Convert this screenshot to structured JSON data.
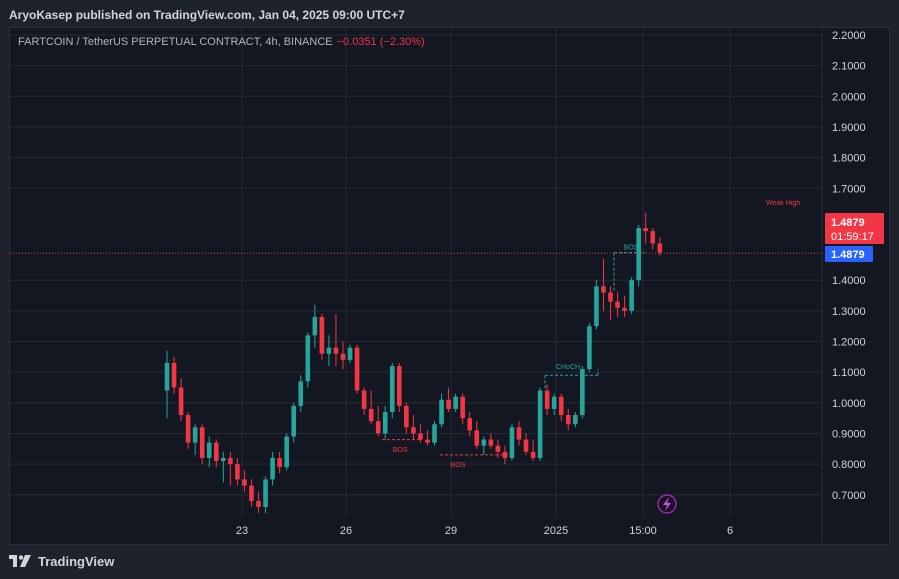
{
  "header": {
    "publisher_line": "AryoKasep published on TradingView.com, Jan 04, 2025 09:00 UTC+7"
  },
  "symbol": {
    "name": "FARTCOIN / TetherUS PERPETUAL CONTRACT, 4h, BINANCE",
    "change": "−0.0351 (−2.30%)"
  },
  "price_labels": {
    "last_price": "1.4879",
    "countdown": "01:59:17",
    "line_price": "1.4879"
  },
  "footer": {
    "brand": "TradingView"
  },
  "colors": {
    "up": "#26a69a",
    "down": "#f23645",
    "accent_blue": "#2962ff",
    "background": "#131722"
  },
  "icons": [
    "tradingview-logo-icon",
    "lightning-icon"
  ],
  "chart_data": {
    "type": "candlestick",
    "interval": "4h",
    "y_ticks": [
      "2.2000",
      "2.1000",
      "2.0000",
      "1.9000",
      "1.8000",
      "1.7000",
      "1.4000",
      "1.3000",
      "1.2000",
      "1.1000",
      "1.0000",
      "0.9000",
      "0.8000",
      "0.7000"
    ],
    "ylim": [
      0.64,
      2.22
    ],
    "x_ticks": [
      "23",
      "26",
      "29",
      "2025",
      "15:00",
      "6"
    ],
    "grid": true,
    "last_price": 1.4879,
    "annotations": [
      {
        "text": "Weak High",
        "color": "#f23645"
      },
      {
        "text": "BOS",
        "color": "#26a69a"
      },
      {
        "text": "CHoCH",
        "color": "#26a69a"
      },
      {
        "text": "BOS",
        "color": "#f23645"
      },
      {
        "text": "BOS",
        "color": "#f23645"
      }
    ],
    "candles": [
      {
        "o": 1.04,
        "h": 1.17,
        "l": 0.95,
        "c": 1.13
      },
      {
        "o": 1.13,
        "h": 1.15,
        "l": 1.03,
        "c": 1.05
      },
      {
        "o": 1.05,
        "h": 1.08,
        "l": 0.94,
        "c": 0.96
      },
      {
        "o": 0.96,
        "h": 0.97,
        "l": 0.85,
        "c": 0.87
      },
      {
        "o": 0.87,
        "h": 0.93,
        "l": 0.83,
        "c": 0.92
      },
      {
        "o": 0.92,
        "h": 0.93,
        "l": 0.8,
        "c": 0.82
      },
      {
        "o": 0.82,
        "h": 0.89,
        "l": 0.79,
        "c": 0.87
      },
      {
        "o": 0.87,
        "h": 0.88,
        "l": 0.79,
        "c": 0.81
      },
      {
        "o": 0.81,
        "h": 0.84,
        "l": 0.74,
        "c": 0.82
      },
      {
        "o": 0.82,
        "h": 0.84,
        "l": 0.73,
        "c": 0.8
      },
      {
        "o": 0.8,
        "h": 0.82,
        "l": 0.73,
        "c": 0.75
      },
      {
        "o": 0.75,
        "h": 0.78,
        "l": 0.71,
        "c": 0.73
      },
      {
        "o": 0.73,
        "h": 0.75,
        "l": 0.66,
        "c": 0.68
      },
      {
        "o": 0.68,
        "h": 0.71,
        "l": 0.64,
        "c": 0.66
      },
      {
        "o": 0.66,
        "h": 0.76,
        "l": 0.64,
        "c": 0.75
      },
      {
        "o": 0.75,
        "h": 0.84,
        "l": 0.73,
        "c": 0.82
      },
      {
        "o": 0.82,
        "h": 0.84,
        "l": 0.77,
        "c": 0.79
      },
      {
        "o": 0.79,
        "h": 0.9,
        "l": 0.78,
        "c": 0.89
      },
      {
        "o": 0.89,
        "h": 1.0,
        "l": 0.87,
        "c": 0.99
      },
      {
        "o": 0.99,
        "h": 1.09,
        "l": 0.97,
        "c": 1.07
      },
      {
        "o": 1.07,
        "h": 1.23,
        "l": 1.05,
        "c": 1.22
      },
      {
        "o": 1.22,
        "h": 1.32,
        "l": 1.18,
        "c": 1.28
      },
      {
        "o": 1.28,
        "h": 1.29,
        "l": 1.14,
        "c": 1.16
      },
      {
        "o": 1.16,
        "h": 1.22,
        "l": 1.12,
        "c": 1.18
      },
      {
        "o": 1.18,
        "h": 1.29,
        "l": 1.12,
        "c": 1.16
      },
      {
        "o": 1.16,
        "h": 1.2,
        "l": 1.11,
        "c": 1.14
      },
      {
        "o": 1.14,
        "h": 1.19,
        "l": 1.13,
        "c": 1.18
      },
      {
        "o": 1.18,
        "h": 1.19,
        "l": 1.03,
        "c": 1.04
      },
      {
        "o": 1.04,
        "h": 1.05,
        "l": 0.96,
        "c": 0.98
      },
      {
        "o": 0.98,
        "h": 1.04,
        "l": 0.93,
        "c": 0.94
      },
      {
        "o": 0.94,
        "h": 0.99,
        "l": 0.89,
        "c": 0.9
      },
      {
        "o": 0.9,
        "h": 0.99,
        "l": 0.88,
        "c": 0.97
      },
      {
        "o": 0.97,
        "h": 1.13,
        "l": 0.95,
        "c": 1.12
      },
      {
        "o": 1.12,
        "h": 1.13,
        "l": 0.97,
        "c": 0.99
      },
      {
        "o": 0.99,
        "h": 1.0,
        "l": 0.9,
        "c": 0.92
      },
      {
        "o": 0.92,
        "h": 0.96,
        "l": 0.88,
        "c": 0.9
      },
      {
        "o": 0.9,
        "h": 0.93,
        "l": 0.87,
        "c": 0.88
      },
      {
        "o": 0.88,
        "h": 0.91,
        "l": 0.86,
        "c": 0.87
      },
      {
        "o": 0.87,
        "h": 0.94,
        "l": 0.86,
        "c": 0.93
      },
      {
        "o": 0.93,
        "h": 1.03,
        "l": 0.92,
        "c": 1.01
      },
      {
        "o": 1.01,
        "h": 1.05,
        "l": 0.97,
        "c": 0.98
      },
      {
        "o": 0.98,
        "h": 1.03,
        "l": 0.97,
        "c": 1.02
      },
      {
        "o": 1.02,
        "h": 1.03,
        "l": 0.93,
        "c": 0.95
      },
      {
        "o": 0.95,
        "h": 0.97,
        "l": 0.89,
        "c": 0.91
      },
      {
        "o": 0.91,
        "h": 0.94,
        "l": 0.85,
        "c": 0.86
      },
      {
        "o": 0.86,
        "h": 0.89,
        "l": 0.83,
        "c": 0.88
      },
      {
        "o": 0.88,
        "h": 0.9,
        "l": 0.85,
        "c": 0.86
      },
      {
        "o": 0.86,
        "h": 0.88,
        "l": 0.82,
        "c": 0.84
      },
      {
        "o": 0.84,
        "h": 0.86,
        "l": 0.8,
        "c": 0.82
      },
      {
        "o": 0.82,
        "h": 0.93,
        "l": 0.81,
        "c": 0.92
      },
      {
        "o": 0.92,
        "h": 0.94,
        "l": 0.86,
        "c": 0.88
      },
      {
        "o": 0.88,
        "h": 0.9,
        "l": 0.83,
        "c": 0.84
      },
      {
        "o": 0.84,
        "h": 0.88,
        "l": 0.81,
        "c": 0.82
      },
      {
        "o": 0.82,
        "h": 1.05,
        "l": 0.81,
        "c": 1.04
      },
      {
        "o": 1.04,
        "h": 1.06,
        "l": 0.96,
        "c": 0.98
      },
      {
        "o": 0.98,
        "h": 1.03,
        "l": 0.96,
        "c": 1.02
      },
      {
        "o": 1.02,
        "h": 1.03,
        "l": 0.94,
        "c": 0.96
      },
      {
        "o": 0.96,
        "h": 0.98,
        "l": 0.91,
        "c": 0.93
      },
      {
        "o": 0.93,
        "h": 0.97,
        "l": 0.92,
        "c": 0.96
      },
      {
        "o": 0.96,
        "h": 1.12,
        "l": 0.95,
        "c": 1.11
      },
      {
        "o": 1.11,
        "h": 1.26,
        "l": 1.1,
        "c": 1.25
      },
      {
        "o": 1.25,
        "h": 1.4,
        "l": 1.24,
        "c": 1.38
      },
      {
        "o": 1.38,
        "h": 1.47,
        "l": 1.3,
        "c": 1.36
      },
      {
        "o": 1.36,
        "h": 1.38,
        "l": 1.27,
        "c": 1.33
      },
      {
        "o": 1.33,
        "h": 1.36,
        "l": 1.28,
        "c": 1.31
      },
      {
        "o": 1.31,
        "h": 1.35,
        "l": 1.28,
        "c": 1.3
      },
      {
        "o": 1.3,
        "h": 1.41,
        "l": 1.29,
        "c": 1.4
      },
      {
        "o": 1.4,
        "h": 1.58,
        "l": 1.38,
        "c": 1.57
      },
      {
        "o": 1.57,
        "h": 1.62,
        "l": 1.52,
        "c": 1.56
      },
      {
        "o": 1.56,
        "h": 1.57,
        "l": 1.5,
        "c": 1.52
      },
      {
        "o": 1.52,
        "h": 1.54,
        "l": 1.48,
        "c": 1.49
      }
    ]
  }
}
